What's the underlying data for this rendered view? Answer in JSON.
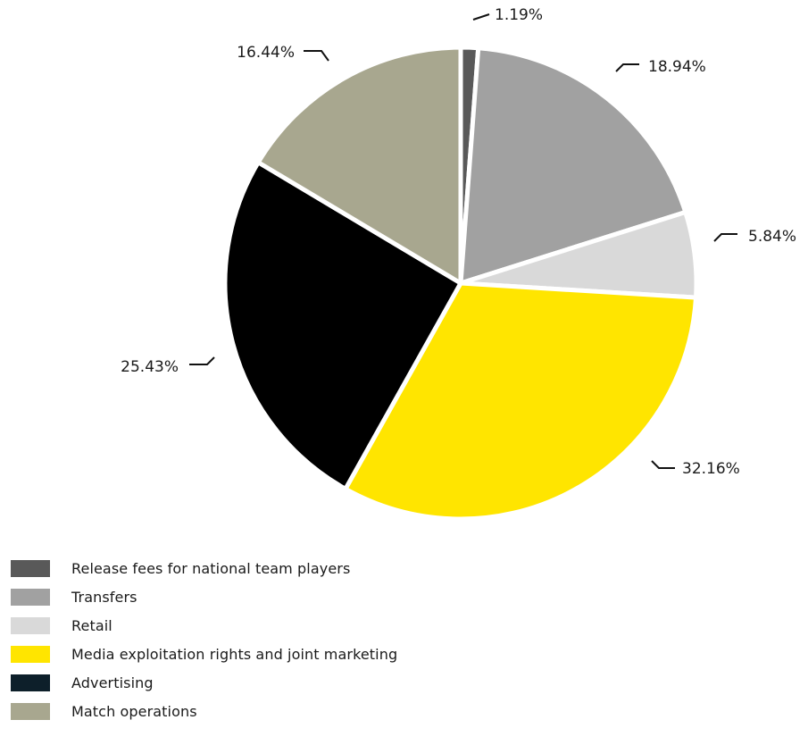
{
  "chart_data": {
    "type": "pie",
    "title": "",
    "slices": [
      {
        "label": "Release fees for national team players",
        "value": 1.19,
        "display": "1.19%",
        "color": "#595959"
      },
      {
        "label": "Transfers",
        "value": 18.94,
        "display": "18.94%",
        "color": "#a1a1a1"
      },
      {
        "label": "Retail",
        "value": 5.84,
        "display": "5.84%",
        "color": "#d9d9d9"
      },
      {
        "label": "Media exploitation rights and joint marketing",
        "value": 32.16,
        "display": "32.16%",
        "color": "#ffe500"
      },
      {
        "label": "Advertising",
        "value": 25.43,
        "display": "25.43%",
        "color": "#000000"
      },
      {
        "label": "Match operations",
        "value": 16.44,
        "display": "16.44%",
        "color": "#a8a78f"
      }
    ],
    "legend_position": "bottom-left",
    "legend_entries": [
      {
        "label": "Release fees for national team players",
        "color": "#595959"
      },
      {
        "label": "Transfers",
        "color": "#a1a1a1"
      },
      {
        "label": "Retail",
        "color": "#d9d9d9"
      },
      {
        "label": "Media exploitation rights and joint marketing",
        "color": "#ffe500"
      },
      {
        "label": "Advertising",
        "color": "#0d1f2a"
      },
      {
        "label": "Match operations",
        "color": "#a8a78f"
      }
    ]
  }
}
